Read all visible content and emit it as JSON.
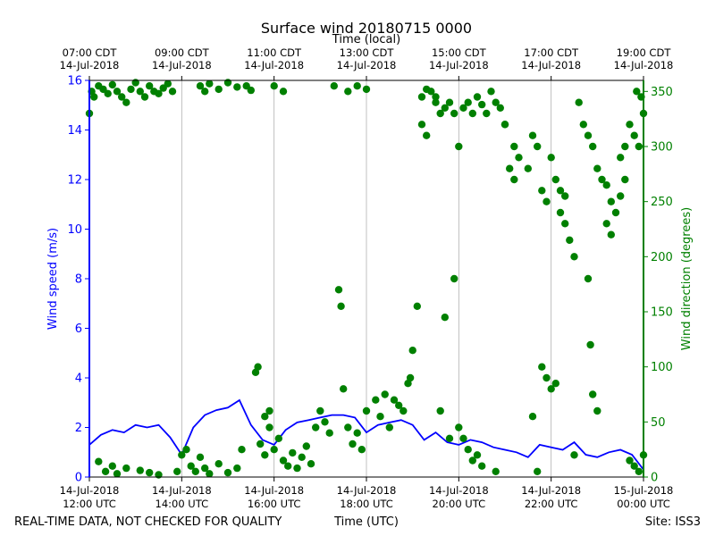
{
  "chart_data": {
    "type": "line+scatter",
    "title": "Surface wind 20180715 0000",
    "top_axis_label": "Time (local)",
    "xlabel": "Time (UTC)",
    "ylabel_left": "Wind speed (m/s)",
    "ylabel_right": "Wind direction (degrees)",
    "footer_left": "REAL-TIME DATA, NOT CHECKED FOR QUALITY",
    "footer_right": "Site: ISS3",
    "colors": {
      "speed": "#0000ff",
      "direction": "#008000",
      "grid": "#b0b0b0",
      "axis": "#000000"
    },
    "xlim_utc_hours": [
      12,
      24
    ],
    "ylim_left": [
      0,
      16
    ],
    "ylim_right": [
      0,
      360
    ],
    "left_ticks": [
      "0",
      "2",
      "4",
      "6",
      "8",
      "10",
      "12",
      "14",
      "16"
    ],
    "right_ticks": [
      "0",
      "50",
      "100",
      "150",
      "200",
      "250",
      "300",
      "350"
    ],
    "bottom_ticks": [
      {
        "hour": 12,
        "line1": "14-Jul-2018",
        "line2": "12:00 UTC"
      },
      {
        "hour": 14,
        "line1": "14-Jul-2018",
        "line2": "14:00 UTC"
      },
      {
        "hour": 16,
        "line1": "14-Jul-2018",
        "line2": "16:00 UTC"
      },
      {
        "hour": 18,
        "line1": "14-Jul-2018",
        "line2": "18:00 UTC"
      },
      {
        "hour": 20,
        "line1": "14-Jul-2018",
        "line2": "20:00 UTC"
      },
      {
        "hour": 22,
        "line1": "14-Jul-2018",
        "line2": "22:00 UTC"
      },
      {
        "hour": 24,
        "line1": "15-Jul-2018",
        "line2": "00:00 UTC"
      }
    ],
    "top_ticks": [
      {
        "hour": 12,
        "line1": "07:00 CDT",
        "line2": "14-Jul-2018"
      },
      {
        "hour": 14,
        "line1": "09:00 CDT",
        "line2": "14-Jul-2018"
      },
      {
        "hour": 16,
        "line1": "11:00 CDT",
        "line2": "14-Jul-2018"
      },
      {
        "hour": 18,
        "line1": "13:00 CDT",
        "line2": "14-Jul-2018"
      },
      {
        "hour": 20,
        "line1": "15:00 CDT",
        "line2": "14-Jul-2018"
      },
      {
        "hour": 22,
        "line1": "17:00 CDT",
        "line2": "14-Jul-2018"
      },
      {
        "hour": 24,
        "line1": "19:00 CDT",
        "line2": "14-Jul-2018"
      }
    ],
    "series": [
      {
        "name": "Wind speed (m/s)",
        "axis": "left",
        "style": "line",
        "x_hours": [
          12.0,
          12.25,
          12.5,
          12.75,
          13.0,
          13.25,
          13.5,
          13.75,
          14.0,
          14.25,
          14.5,
          14.75,
          15.0,
          15.25,
          15.5,
          15.75,
          16.0,
          16.25,
          16.5,
          16.75,
          17.0,
          17.25,
          17.5,
          17.75,
          18.0,
          18.25,
          18.5,
          18.75,
          19.0,
          19.25,
          19.5,
          19.75,
          20.0,
          20.25,
          20.5,
          20.75,
          21.0,
          21.25,
          21.5,
          21.75,
          22.0,
          22.25,
          22.5,
          22.75,
          23.0,
          23.25,
          23.5,
          23.75,
          24.0
        ],
        "y": [
          1.3,
          1.7,
          1.9,
          1.8,
          2.1,
          2.0,
          2.1,
          1.6,
          0.9,
          2.0,
          2.5,
          2.7,
          2.8,
          3.1,
          2.1,
          1.5,
          1.3,
          1.9,
          2.2,
          2.3,
          2.4,
          2.5,
          2.5,
          2.4,
          1.8,
          2.1,
          2.2,
          2.3,
          2.1,
          1.5,
          1.8,
          1.4,
          1.3,
          1.5,
          1.4,
          1.2,
          1.1,
          1.0,
          0.8,
          1.3,
          1.2,
          1.1,
          1.4,
          0.9,
          0.8,
          1.0,
          1.1,
          0.9,
          0.3
        ]
      },
      {
        "name": "Wind direction (degrees)",
        "axis": "right",
        "style": "scatter",
        "points": [
          [
            12.0,
            330
          ],
          [
            12.05,
            350
          ],
          [
            12.1,
            345
          ],
          [
            12.2,
            355
          ],
          [
            12.3,
            352
          ],
          [
            12.4,
            348
          ],
          [
            12.5,
            356
          ],
          [
            12.6,
            350
          ],
          [
            12.7,
            345
          ],
          [
            12.8,
            340
          ],
          [
            12.9,
            352
          ],
          [
            13.0,
            358
          ],
          [
            13.1,
            350
          ],
          [
            13.2,
            345
          ],
          [
            13.3,
            355
          ],
          [
            13.4,
            350
          ],
          [
            13.5,
            348
          ],
          [
            13.6,
            353
          ],
          [
            13.7,
            357
          ],
          [
            13.8,
            350
          ],
          [
            12.2,
            14
          ],
          [
            12.35,
            5
          ],
          [
            12.5,
            10
          ],
          [
            12.6,
            3
          ],
          [
            12.8,
            8
          ],
          [
            13.1,
            6
          ],
          [
            13.3,
            4
          ],
          [
            13.5,
            2
          ],
          [
            13.9,
            5
          ],
          [
            14.0,
            20
          ],
          [
            14.1,
            25
          ],
          [
            14.2,
            10
          ],
          [
            14.3,
            5
          ],
          [
            14.4,
            18
          ],
          [
            14.5,
            8
          ],
          [
            14.6,
            3
          ],
          [
            14.8,
            12
          ],
          [
            15.0,
            4
          ],
          [
            15.2,
            8
          ],
          [
            15.3,
            25
          ],
          [
            14.4,
            355
          ],
          [
            14.5,
            350
          ],
          [
            14.6,
            357
          ],
          [
            14.8,
            352
          ],
          [
            15.0,
            358
          ],
          [
            15.2,
            354
          ],
          [
            15.4,
            355
          ],
          [
            15.5,
            351
          ],
          [
            15.7,
            30
          ],
          [
            15.8,
            20
          ],
          [
            15.9,
            45
          ],
          [
            16.0,
            25
          ],
          [
            16.1,
            35
          ],
          [
            16.2,
            15
          ],
          [
            16.3,
            10
          ],
          [
            16.4,
            22
          ],
          [
            16.5,
            8
          ],
          [
            16.6,
            18
          ],
          [
            16.7,
            28
          ],
          [
            16.8,
            12
          ],
          [
            15.6,
            95
          ],
          [
            15.65,
            100
          ],
          [
            15.8,
            55
          ],
          [
            15.9,
            60
          ],
          [
            16.0,
            355
          ],
          [
            16.2,
            350
          ],
          [
            16.9,
            45
          ],
          [
            17.0,
            60
          ],
          [
            17.1,
            50
          ],
          [
            17.2,
            40
          ],
          [
            17.3,
            355
          ],
          [
            17.4,
            170
          ],
          [
            17.45,
            155
          ],
          [
            17.5,
            80
          ],
          [
            17.6,
            45
          ],
          [
            17.7,
            30
          ],
          [
            17.8,
            40
          ],
          [
            17.9,
            25
          ],
          [
            18.0,
            60
          ],
          [
            18.2,
            70
          ],
          [
            17.6,
            350
          ],
          [
            17.8,
            355
          ],
          [
            18.0,
            352
          ],
          [
            18.3,
            55
          ],
          [
            18.4,
            75
          ],
          [
            18.5,
            45
          ],
          [
            18.6,
            70
          ],
          [
            18.7,
            65
          ],
          [
            18.8,
            60
          ],
          [
            18.9,
            85
          ],
          [
            18.95,
            90
          ],
          [
            19.0,
            115
          ],
          [
            19.1,
            155
          ],
          [
            19.2,
            320
          ],
          [
            19.3,
            310
          ],
          [
            19.4,
            350
          ],
          [
            19.5,
            345
          ],
          [
            19.6,
            60
          ],
          [
            19.7,
            145
          ],
          [
            19.8,
            35
          ],
          [
            19.2,
            345
          ],
          [
            19.3,
            352
          ],
          [
            19.5,
            340
          ],
          [
            19.6,
            330
          ],
          [
            19.7,
            335
          ],
          [
            19.8,
            340
          ],
          [
            19.9,
            330
          ],
          [
            20.0,
            300
          ],
          [
            20.1,
            335
          ],
          [
            20.2,
            340
          ],
          [
            20.3,
            330
          ],
          [
            20.4,
            345
          ],
          [
            20.5,
            338
          ],
          [
            20.6,
            330
          ],
          [
            20.7,
            350
          ],
          [
            20.8,
            340
          ],
          [
            20.9,
            335
          ],
          [
            21.0,
            320
          ],
          [
            21.1,
            280
          ],
          [
            21.2,
            270
          ],
          [
            19.9,
            180
          ],
          [
            20.0,
            45
          ],
          [
            20.1,
            35
          ],
          [
            20.2,
            25
          ],
          [
            20.3,
            15
          ],
          [
            20.4,
            20
          ],
          [
            20.5,
            10
          ],
          [
            20.8,
            5
          ],
          [
            21.0,
            320
          ],
          [
            21.2,
            300
          ],
          [
            21.3,
            290
          ],
          [
            21.5,
            280
          ],
          [
            21.6,
            310
          ],
          [
            21.7,
            300
          ],
          [
            21.8,
            260
          ],
          [
            21.9,
            250
          ],
          [
            22.0,
            290
          ],
          [
            22.1,
            270
          ],
          [
            22.2,
            260
          ],
          [
            22.3,
            255
          ],
          [
            21.6,
            55
          ],
          [
            21.8,
            100
          ],
          [
            21.9,
            90
          ],
          [
            22.0,
            80
          ],
          [
            22.1,
            85
          ],
          [
            22.2,
            240
          ],
          [
            22.3,
            230
          ],
          [
            22.4,
            215
          ],
          [
            22.5,
            200
          ],
          [
            22.6,
            340
          ],
          [
            22.7,
            320
          ],
          [
            22.8,
            310
          ],
          [
            22.9,
            300
          ],
          [
            23.0,
            280
          ],
          [
            23.1,
            270
          ],
          [
            23.2,
            265
          ],
          [
            23.3,
            250
          ],
          [
            23.4,
            240
          ],
          [
            23.5,
            255
          ],
          [
            23.6,
            270
          ],
          [
            22.8,
            180
          ],
          [
            22.85,
            120
          ],
          [
            22.9,
            75
          ],
          [
            23.0,
            60
          ],
          [
            23.2,
            230
          ],
          [
            23.3,
            220
          ],
          [
            23.5,
            290
          ],
          [
            23.6,
            300
          ],
          [
            23.7,
            320
          ],
          [
            23.8,
            310
          ],
          [
            23.9,
            300
          ],
          [
            24.0,
            330
          ],
          [
            23.95,
            345
          ],
          [
            23.85,
            350
          ],
          [
            23.7,
            15
          ],
          [
            23.8,
            10
          ],
          [
            23.9,
            5
          ],
          [
            24.0,
            20
          ],
          [
            22.5,
            20
          ],
          [
            21.7,
            5
          ]
        ]
      }
    ]
  }
}
